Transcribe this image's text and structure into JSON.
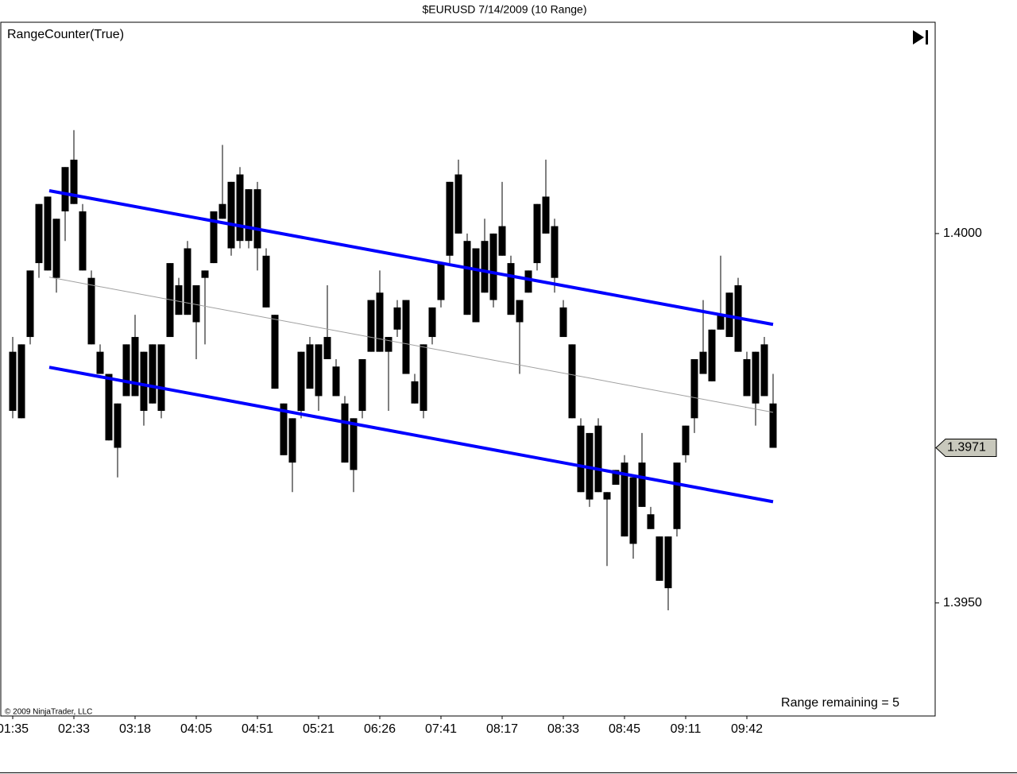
{
  "chart_data": {
    "type": "candlestick",
    "title": "$EURUSD  7/14/2009 (10 Range)",
    "indicator_label": "RangeCounter(True)",
    "range_remaining": "Range remaining = 5",
    "copyright": "© 2009 NinjaTrader, LLC",
    "color": "#000000",
    "categories": [
      "01:35",
      null,
      null,
      null,
      null,
      null,
      null,
      "02:33",
      null,
      null,
      null,
      null,
      null,
      null,
      "03:18",
      null,
      null,
      null,
      null,
      null,
      null,
      "04:05",
      null,
      null,
      null,
      null,
      null,
      null,
      "04:51",
      null,
      null,
      null,
      null,
      null,
      null,
      "05:21",
      null,
      null,
      null,
      null,
      null,
      null,
      "06:26",
      null,
      null,
      null,
      null,
      null,
      null,
      "07:41",
      null,
      null,
      null,
      null,
      null,
      null,
      "08:17",
      null,
      null,
      null,
      null,
      null,
      null,
      "08:33",
      null,
      null,
      null,
      null,
      null,
      null,
      "08:45",
      null,
      null,
      null,
      null,
      null,
      null,
      "09:11",
      null,
      null,
      null,
      null,
      null,
      null,
      "09:42",
      null,
      null,
      null
    ],
    "open": [
      1.3984,
      1.3975,
      1.3986,
      1.3996,
      1.4005,
      1.3994,
      1.4003,
      1.401,
      1.4003,
      1.3994,
      1.3984,
      1.3981,
      1.3971,
      1.3978,
      1.3986,
      1.3976,
      1.3985,
      1.3976,
      1.3986,
      1.3993,
      1.3989,
      1.3993,
      1.3994,
      1.3996,
      1.4002,
      1.3998,
      1.4008,
      1.3999,
      1.4006,
      1.3997,
      1.3989,
      1.3977,
      1.3969,
      1.3976,
      1.3985,
      1.3978,
      1.3986,
      1.3982,
      1.3977,
      1.3968,
      1.3976,
      1.3984,
      1.3992,
      1.3984,
      1.3987,
      1.3991,
      1.398,
      1.3976,
      1.3986,
      1.3991,
      1.3997,
      1.4008,
      1.3999,
      1.3988,
      1.3999,
      1.3991,
      1.4001,
      1.3996,
      1.3988,
      1.3992,
      1.3996,
      1.4005,
      1.4001,
      1.399,
      1.3985,
      1.3974,
      1.3973,
      1.3974,
      1.3964,
      1.3966,
      1.3969,
      1.3958,
      1.3969,
      1.3962,
      1.3959,
      1.3952,
      1.396,
      1.397,
      1.3975,
      1.3981,
      1.398,
      1.3987,
      1.3986,
      1.3993,
      1.3983,
      1.3977,
      1.3985,
      1.3977
    ],
    "high": [
      1.3986,
      1.3985,
      1.3995,
      1.4004,
      1.4005,
      1.4002,
      1.4009,
      1.4014,
      1.4004,
      1.3995,
      1.3985,
      1.3981,
      1.3977,
      1.3985,
      1.3989,
      1.3984,
      1.3985,
      1.3985,
      1.3996,
      1.3994,
      1.3999,
      1.3993,
      1.3995,
      1.4003,
      1.4012,
      1.4007,
      1.4009,
      1.4006,
      1.4007,
      1.3998,
      1.3989,
      1.3977,
      1.3975,
      1.3984,
      1.3986,
      1.3985,
      1.3993,
      1.3983,
      1.3978,
      1.3975,
      1.3983,
      1.3991,
      1.3995,
      1.3986,
      1.3991,
      1.3991,
      1.3981,
      1.3985,
      1.399,
      1.3996,
      1.4007,
      1.401,
      1.4,
      1.3998,
      1.4002,
      1.4,
      1.4007,
      1.3997,
      1.3991,
      1.3995,
      1.4004,
      1.401,
      1.4002,
      1.3991,
      1.3985,
      1.3975,
      1.3973,
      1.3975,
      1.3965,
      1.3968,
      1.397,
      1.3967,
      1.3973,
      1.3963,
      1.3959,
      1.3959,
      1.3969,
      1.3974,
      1.3983,
      1.3991,
      1.3987,
      1.3997,
      1.3992,
      1.3994,
      1.3984,
      1.3984,
      1.3986,
      1.3981
    ],
    "low": [
      1.3975,
      1.3975,
      1.3985,
      1.3994,
      1.3995,
      1.3992,
      1.3999,
      1.4004,
      1.3995,
      1.3985,
      1.3981,
      1.3972,
      1.3967,
      1.3978,
      1.3978,
      1.3974,
      1.3977,
      1.3975,
      1.3986,
      1.3989,
      1.3989,
      1.3983,
      1.3985,
      1.3996,
      1.4002,
      1.3997,
      1.3998,
      1.3998,
      1.3995,
      1.399,
      1.3979,
      1.397,
      1.3965,
      1.3975,
      1.3979,
      1.3976,
      1.3983,
      1.3978,
      1.3969,
      1.3965,
      1.3975,
      1.3984,
      1.3984,
      1.3976,
      1.3986,
      1.3981,
      1.3977,
      1.3975,
      1.3985,
      1.399,
      1.3996,
      1.4,
      1.3989,
      1.3988,
      1.3992,
      1.399,
      1.3997,
      1.3989,
      1.3981,
      1.3992,
      1.3995,
      1.4,
      1.3992,
      1.3986,
      1.3975,
      1.3965,
      1.3963,
      1.3965,
      1.3955,
      1.3966,
      1.3959,
      1.3956,
      1.3963,
      1.396,
      1.3953,
      1.3949,
      1.3959,
      1.3969,
      1.3973,
      1.3981,
      1.398,
      1.3987,
      1.3986,
      1.3984,
      1.3978,
      1.3974,
      1.3978,
      1.3971
    ],
    "close": [
      1.3976,
      1.3985,
      1.3995,
      1.4004,
      1.3995,
      1.4002,
      1.4009,
      1.4004,
      1.3995,
      1.3985,
      1.3981,
      1.3972,
      1.3977,
      1.3985,
      1.3978,
      1.3984,
      1.3977,
      1.3985,
      1.3996,
      1.3989,
      1.3998,
      1.3988,
      1.3995,
      1.4003,
      1.4004,
      1.4007,
      1.3999,
      1.4006,
      1.3998,
      1.399,
      1.3979,
      1.397,
      1.3975,
      1.3984,
      1.3979,
      1.3985,
      1.3983,
      1.3978,
      1.3969,
      1.3975,
      1.3983,
      1.3991,
      1.3984,
      1.3986,
      1.399,
      1.3981,
      1.3977,
      1.3985,
      1.399,
      1.3996,
      1.4007,
      1.4,
      1.3989,
      1.3998,
      1.3992,
      1.4,
      1.3997,
      1.3989,
      1.3991,
      1.3995,
      1.4004,
      1.4,
      1.3994,
      1.3986,
      1.3975,
      1.3965,
      1.3964,
      1.3965,
      1.3965,
      1.3968,
      1.3959,
      1.3967,
      1.3963,
      1.396,
      1.3953,
      1.3959,
      1.3969,
      1.3974,
      1.3983,
      1.3984,
      1.3987,
      1.3989,
      1.3992,
      1.3984,
      1.3978,
      1.3984,
      1.3978,
      1.3971
    ],
    "channel": {
      "from_bar": 4,
      "to_bar": 87,
      "color": "#0000ff",
      "mid_color": "#a0a0a0",
      "upper": [
        1.40058,
        1.39877
      ],
      "middle": [
        1.39941,
        1.39758
      ],
      "lower": [
        1.39819,
        1.39637
      ]
    },
    "ylim": [
      1.39347,
      1.40286
    ],
    "yticks": [
      {
        "value": 1.4,
        "label": "1.4000"
      },
      {
        "value": 1.395,
        "label": "1.3950"
      }
    ],
    "last_price": {
      "value": 1.3971,
      "label": "1.3971"
    }
  }
}
